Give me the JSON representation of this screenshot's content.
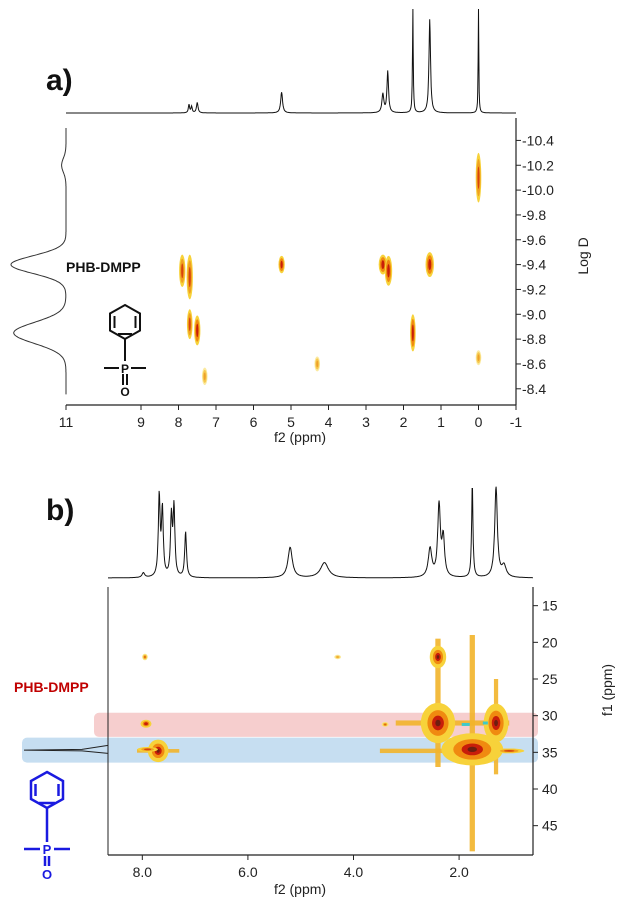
{
  "chart_data": [
    {
      "type": "heatmap",
      "panel": "a)",
      "xlabel": "f2 (ppm)",
      "ylabel": "Log D",
      "xlim": [
        11,
        -1
      ],
      "ylim": [
        -8.35,
        -10.5
      ],
      "x_ticks": [
        "11",
        "9",
        "8",
        "7",
        "6",
        "5",
        "4",
        "3",
        "2",
        "1",
        "0",
        "-1"
      ],
      "y_ticks": [
        "-10.4",
        "-10.2",
        "-10.0",
        "-9.8",
        "-9.6",
        "-9.4",
        "-9.2",
        "-9.0",
        "-8.8",
        "-8.6",
        "-8.4"
      ],
      "compound_label": "PHB-DMPP",
      "compound_color": "#111111",
      "peaks": [
        {
          "x": 7.9,
          "y": -9.35,
          "dx": 0.06,
          "dy": 0.13,
          "i": 0.7
        },
        {
          "x": 7.7,
          "y": -9.3,
          "dx": 0.06,
          "dy": 0.18,
          "i": 0.85
        },
        {
          "x": 7.7,
          "y": -8.92,
          "dx": 0.05,
          "dy": 0.12,
          "i": 0.75
        },
        {
          "x": 7.5,
          "y": -8.87,
          "dx": 0.06,
          "dy": 0.12,
          "i": 0.9
        },
        {
          "x": 7.3,
          "y": -8.5,
          "dx": 0.04,
          "dy": 0.07,
          "i": 0.4
        },
        {
          "x": 5.25,
          "y": -9.4,
          "dx": 0.06,
          "dy": 0.07,
          "i": 1.0
        },
        {
          "x": 4.3,
          "y": -8.6,
          "dx": 0.03,
          "dy": 0.06,
          "i": 0.3
        },
        {
          "x": 2.55,
          "y": -9.4,
          "dx": 0.08,
          "dy": 0.08,
          "i": 1.0
        },
        {
          "x": 2.4,
          "y": -9.35,
          "dx": 0.07,
          "dy": 0.12,
          "i": 1.0
        },
        {
          "x": 1.75,
          "y": -8.85,
          "dx": 0.05,
          "dy": 0.15,
          "i": 1.0
        },
        {
          "x": 1.3,
          "y": -9.4,
          "dx": 0.08,
          "dy": 0.1,
          "i": 1.0
        },
        {
          "x": 0.0,
          "y": -10.1,
          "dx": 0.03,
          "dy": 0.2,
          "i": 0.8
        },
        {
          "x": 0.0,
          "y": -8.65,
          "dx": 0.02,
          "dy": 0.06,
          "i": 0.3
        }
      ],
      "top_spectrum": [
        {
          "x": 7.72,
          "h": 0.08,
          "w": 0.02
        },
        {
          "x": 7.65,
          "h": 0.06,
          "w": 0.02
        },
        {
          "x": 7.5,
          "h": 0.1,
          "w": 0.025
        },
        {
          "x": 5.25,
          "h": 0.2,
          "w": 0.03
        },
        {
          "x": 2.55,
          "h": 0.18,
          "w": 0.03
        },
        {
          "x": 2.42,
          "h": 0.4,
          "w": 0.025
        },
        {
          "x": 1.75,
          "h": 1.0,
          "w": 0.012
        },
        {
          "x": 1.3,
          "h": 0.9,
          "w": 0.025
        },
        {
          "x": 0.0,
          "h": 1.0,
          "w": 0.01
        }
      ],
      "side_projection": [
        {
          "y": -9.4,
          "h": 1.0,
          "w": 0.1
        },
        {
          "y": -8.85,
          "h": 0.95,
          "w": 0.12
        },
        {
          "y": -10.2,
          "h": 0.08,
          "w": 0.08
        }
      ]
    },
    {
      "type": "heatmap",
      "panel": "b)",
      "xlabel": "f2 (ppm)",
      "ylabel": "f1 (ppm)",
      "xlim": [
        8.65,
        0.6
      ],
      "ylim": [
        13,
        49
      ],
      "x_ticks": [
        "8.0",
        "6.0",
        "4.0",
        "2.0"
      ],
      "y_ticks": [
        "15",
        "20",
        "25",
        "30",
        "35",
        "40",
        "45"
      ],
      "compound_label": "PHB-DMPP",
      "compound_color": "#c00000",
      "highlight_bands": [
        {
          "y_from": 29.6,
          "y_to": 32.9,
          "color": "#f4c6c6"
        },
        {
          "y_from": 33.0,
          "y_to": 36.4,
          "color": "#bcd8ef"
        }
      ],
      "peaks": [
        {
          "x": 7.95,
          "y": 22.0,
          "dx": 0.04,
          "dy": 0.4,
          "i": 0.6
        },
        {
          "x": 7.93,
          "y": 31.1,
          "dx": 0.08,
          "dy": 0.5,
          "i": 0.9
        },
        {
          "x": 7.7,
          "y": 34.8,
          "dx": 0.15,
          "dy": 1.4,
          "i": 1.0
        },
        {
          "x": 7.9,
          "y": 34.6,
          "dx": 0.15,
          "dy": 0.3,
          "i": 0.7
        },
        {
          "x": 4.3,
          "y": 22.0,
          "dx": 0.05,
          "dy": 0.2,
          "i": 0.25
        },
        {
          "x": 3.4,
          "y": 31.2,
          "dx": 0.05,
          "dy": 0.3,
          "i": 0.45
        },
        {
          "x": 2.4,
          "y": 31.0,
          "dx": 0.25,
          "dy": 2.5,
          "i": 1.0
        },
        {
          "x": 2.4,
          "y": 22.0,
          "dx": 0.12,
          "dy": 1.4,
          "i": 1.0
        },
        {
          "x": 1.75,
          "y": 34.6,
          "dx": 0.45,
          "dy": 2.0,
          "i": 1.0
        },
        {
          "x": 1.3,
          "y": 31.0,
          "dx": 0.18,
          "dy": 2.4,
          "i": 1.0
        },
        {
          "x": 1.05,
          "y": 34.8,
          "dx": 0.22,
          "dy": 0.3,
          "i": 0.7
        }
      ],
      "streaks": [
        {
          "x": 1.75,
          "y_from": 19,
          "y_to": 48.5,
          "w": 0.05
        },
        {
          "x": 2.4,
          "y_from": 19.5,
          "y_to": 37,
          "w": 0.05
        },
        {
          "x": 1.3,
          "y_from": 25,
          "y_to": 38,
          "w": 0.04
        },
        {
          "y": 31.0,
          "x_from": 3.2,
          "x_to": 1.05,
          "w": 0.35
        },
        {
          "y": 34.8,
          "x_from": 3.5,
          "x_to": 0.95,
          "w": 0.3
        },
        {
          "y": 34.8,
          "x_from": 8.1,
          "x_to": 7.3,
          "w": 0.25
        }
      ],
      "top_spectrum": [
        {
          "x": 7.98,
          "h": 0.05,
          "w": 0.03
        },
        {
          "x": 7.68,
          "h": 0.85,
          "w": 0.02
        },
        {
          "x": 7.62,
          "h": 0.7,
          "w": 0.02
        },
        {
          "x": 7.45,
          "h": 0.62,
          "w": 0.02
        },
        {
          "x": 7.4,
          "h": 0.72,
          "w": 0.02
        },
        {
          "x": 7.18,
          "h": 0.48,
          "w": 0.02
        },
        {
          "x": 5.2,
          "h": 0.32,
          "w": 0.05
        },
        {
          "x": 4.55,
          "h": 0.16,
          "w": 0.09
        },
        {
          "x": 2.55,
          "h": 0.3,
          "w": 0.04
        },
        {
          "x": 2.38,
          "h": 0.75,
          "w": 0.03
        },
        {
          "x": 2.3,
          "h": 0.4,
          "w": 0.03
        },
        {
          "x": 1.75,
          "h": 1.0,
          "w": 0.015
        },
        {
          "x": 1.3,
          "h": 0.95,
          "w": 0.03
        },
        {
          "x": 1.15,
          "h": 0.12,
          "w": 0.05
        }
      ]
    }
  ]
}
